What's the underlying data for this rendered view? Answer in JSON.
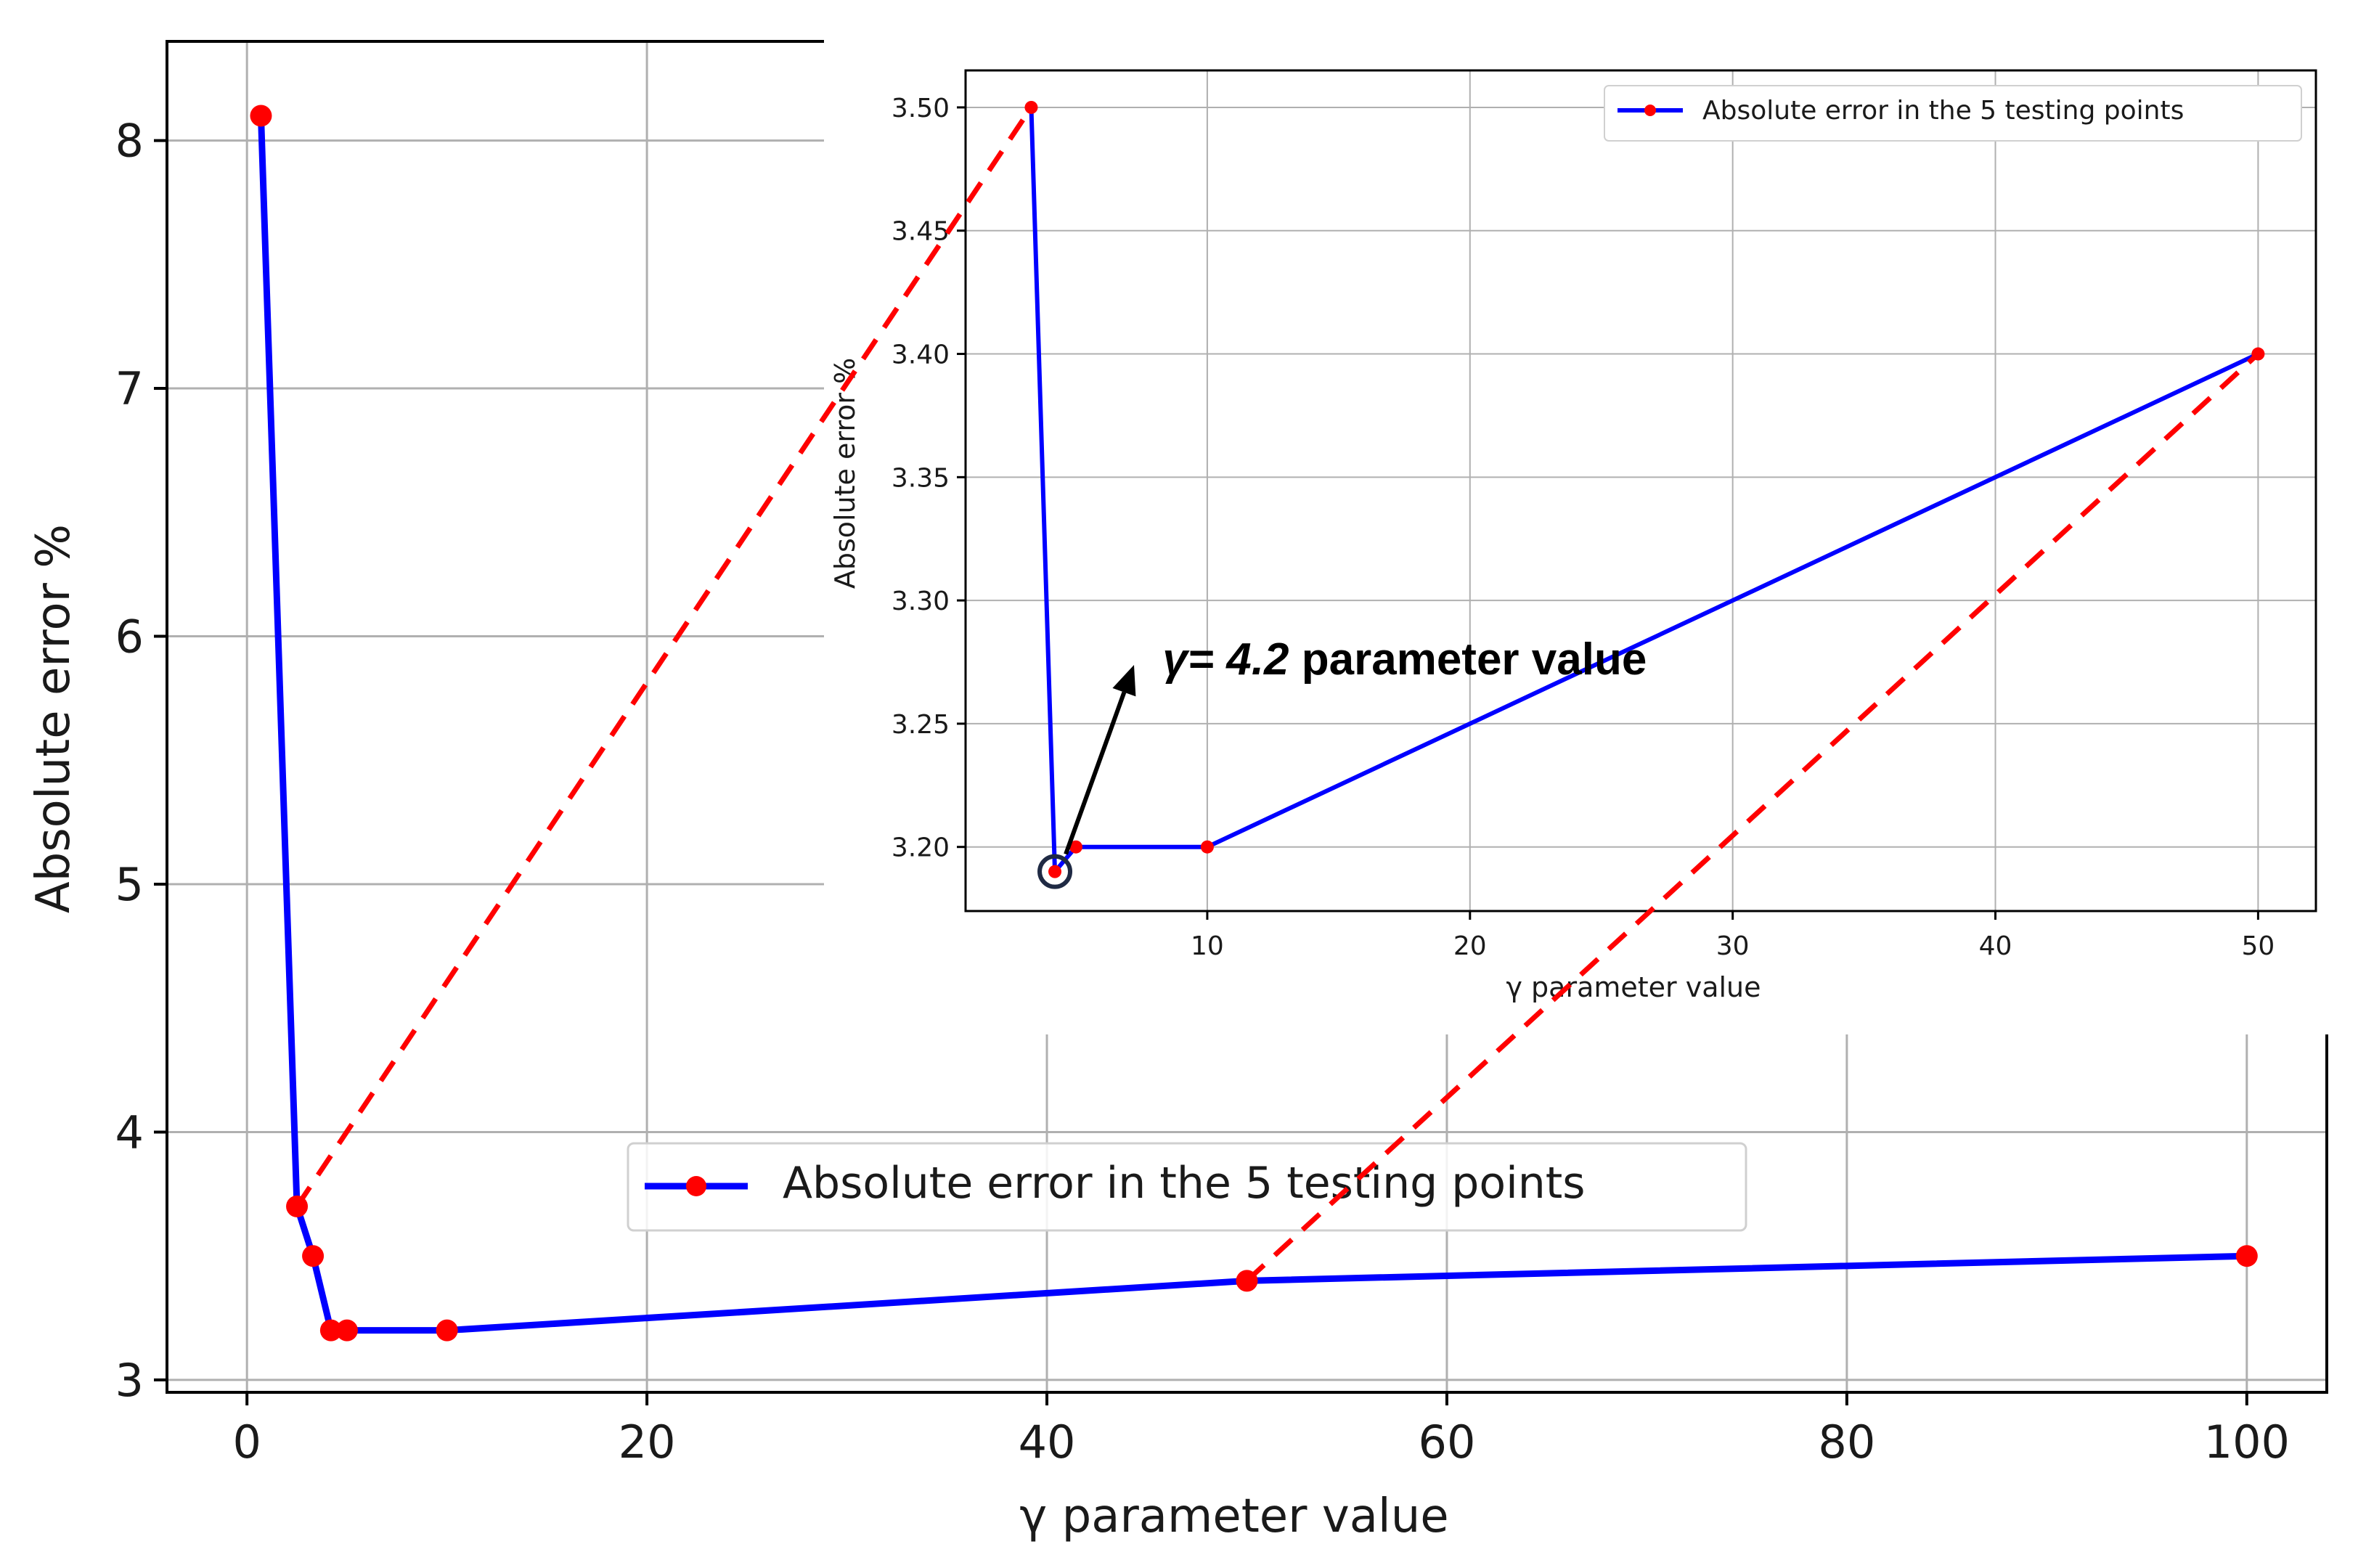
{
  "chart_data": [
    {
      "id": "main",
      "type": "line",
      "xlabel": "γ parameter value",
      "ylabel": "Absolute error %",
      "xlim": [
        -4,
        104
      ],
      "ylim": [
        2.95,
        8.4
      ],
      "xticks": [
        0,
        20,
        40,
        60,
        80,
        100
      ],
      "yticks": [
        3,
        4,
        5,
        6,
        7,
        8
      ],
      "grid": true,
      "legend_position": "lower-center",
      "series": [
        {
          "name": "Absolute error in the 5 testing points",
          "color": "#0000ff",
          "marker_color": "#ff0000",
          "x": [
            0.7,
            2.5,
            3.3,
            4.2,
            5,
            10,
            50,
            100
          ],
          "y": [
            8.1,
            3.7,
            3.5,
            3.2,
            3.2,
            3.2,
            3.4,
            3.5
          ]
        }
      ]
    },
    {
      "id": "inset",
      "type": "line",
      "xlabel": "γ parameter value",
      "ylabel": "Absolute error %",
      "xlim": [
        0.8,
        52.2
      ],
      "ylim": [
        3.174,
        3.515
      ],
      "xticks": [
        10,
        20,
        30,
        40,
        50
      ],
      "yticks": [
        3.2,
        3.25,
        3.3,
        3.35,
        3.4,
        3.45,
        3.5
      ],
      "ytick_labels": [
        "3.20",
        "3.25",
        "3.30",
        "3.35",
        "3.40",
        "3.45",
        "3.50"
      ],
      "grid": true,
      "legend_position": "upper-right",
      "series": [
        {
          "name": "Absolute error in the 5 testing points",
          "color": "#0000ff",
          "marker_color": "#ff0000",
          "x": [
            3.3,
            4.2,
            5,
            10,
            50
          ],
          "y": [
            3.5,
            3.19,
            3.2,
            3.2,
            3.4
          ]
        }
      ],
      "annotation": {
        "emph": "γ= 4.2",
        "rest": " parameter value",
        "point": {
          "x": 4.2,
          "y": 3.19
        },
        "text_at": {
          "x": 8.3,
          "y": 3.27
        },
        "circle_color": "#1f2a44",
        "arrow_color": "#000000"
      }
    }
  ],
  "zoom_connector_color": "#ff0000"
}
